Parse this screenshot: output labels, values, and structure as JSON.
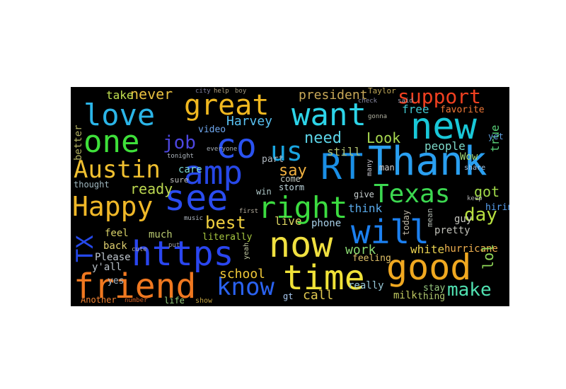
{
  "wordcloud": {
    "background": "#000000",
    "words": [
      {
        "text": "love",
        "color": "#2bb5e8"
      },
      {
        "text": "great",
        "color": "#f0b820"
      },
      {
        "text": "want",
        "color": "#2dd4e8"
      },
      {
        "text": "new",
        "color": "#19c8d8"
      },
      {
        "text": "one",
        "color": "#3ee03a"
      },
      {
        "text": "co",
        "color": "#2a52f0"
      },
      {
        "text": "us",
        "color": "#1aa5e0"
      },
      {
        "text": "RT",
        "color": "#1a8fe6"
      },
      {
        "text": "Thank",
        "color": "#2a9ff0"
      },
      {
        "text": "Austin",
        "color": "#f0c030"
      },
      {
        "text": "amp",
        "color": "#2748e8"
      },
      {
        "text": "see",
        "color": "#2a4cf0"
      },
      {
        "text": "Happy",
        "color": "#f0b828"
      },
      {
        "text": "right",
        "color": "#3cdc40"
      },
      {
        "text": "Texas",
        "color": "#3cd850"
      },
      {
        "text": "will",
        "color": "#1c80f0"
      },
      {
        "text": "https",
        "color": "#2a46f0"
      },
      {
        "text": "now",
        "color": "#f0e040"
      },
      {
        "text": "good",
        "color": "#f0a820"
      },
      {
        "text": "time",
        "color": "#f0e238"
      },
      {
        "text": "friend",
        "color": "#f07820"
      },
      {
        "text": "know",
        "color": "#2a62f0"
      },
      {
        "text": "TX",
        "color": "#2548ea"
      },
      {
        "text": "support",
        "color": "#f04020"
      },
      {
        "text": "president",
        "color": "#c8a858"
      },
      {
        "text": "job",
        "color": "#4d46e0"
      },
      {
        "text": "need",
        "color": "#5cd4e8"
      },
      {
        "text": "Look",
        "color": "#a8d850"
      },
      {
        "text": "say",
        "color": "#f0b040"
      },
      {
        "text": "ready",
        "color": "#bcd850"
      },
      {
        "text": "best",
        "color": "#f0d040"
      },
      {
        "text": "make",
        "color": "#50e0b0"
      },
      {
        "text": "day",
        "color": "#b8e040"
      },
      {
        "text": "got",
        "color": "#a0d848"
      },
      {
        "text": "never",
        "color": "#e8c040"
      },
      {
        "text": "take",
        "color": "#c0e050"
      },
      {
        "text": "Harvey",
        "color": "#58c0f0"
      },
      {
        "text": "free",
        "color": "#40c8d0"
      },
      {
        "text": "favorite",
        "color": "#f07838"
      },
      {
        "text": "true",
        "color": "#58d078"
      },
      {
        "text": "care",
        "color": "#7cd8d0"
      },
      {
        "text": "video",
        "color": "#70a8f0"
      },
      {
        "text": "people",
        "color": "#7cd8c8"
      },
      {
        "text": "still",
        "color": "#b0c070"
      },
      {
        "text": "Wow",
        "color": "#a0d878"
      },
      {
        "text": "think",
        "color": "#58a8e8"
      },
      {
        "text": "hiring",
        "color": "#58a0f0"
      },
      {
        "text": "live",
        "color": "#d8d060"
      },
      {
        "text": "phone",
        "color": "#a8d0e8"
      },
      {
        "text": "school",
        "color": "#f0c838"
      },
      {
        "text": "work",
        "color": "#88d870"
      },
      {
        "text": "white",
        "color": "#e8d050"
      },
      {
        "text": "hurricane",
        "color": "#f0b050"
      },
      {
        "text": "lol",
        "color": "#90d858"
      },
      {
        "text": "call",
        "color": "#e0c850"
      },
      {
        "text": "milk",
        "color": "#c0c860"
      },
      {
        "text": "thing",
        "color": "#b0c870"
      },
      {
        "text": "stay",
        "color": "#98c880"
      },
      {
        "text": "really",
        "color": "#98c8d8"
      },
      {
        "text": "feeling",
        "color": "#e0c068"
      },
      {
        "text": "better",
        "color": "#b0b060"
      },
      {
        "text": "thought",
        "color": "#a0b8c0"
      },
      {
        "text": "feel",
        "color": "#d8d068"
      },
      {
        "text": "much",
        "color": "#b8c870"
      },
      {
        "text": "back",
        "color": "#e0d070"
      },
      {
        "text": "Please",
        "color": "#c0c8d0"
      },
      {
        "text": "y'all",
        "color": "#b8c0c8"
      },
      {
        "text": "yes",
        "color": "#a8b8c8"
      },
      {
        "text": "Another",
        "color": "#f08030"
      },
      {
        "text": "number",
        "color": "#d06028"
      },
      {
        "text": "life",
        "color": "#98d080"
      },
      {
        "text": "show",
        "color": "#c0a040"
      },
      {
        "text": "gt",
        "color": "#a8c8f0"
      },
      {
        "text": "literally",
        "color": "#a8c840"
      },
      {
        "text": "yeah",
        "color": "#c0c8a0"
      },
      {
        "text": "part",
        "color": "#b0b8c0"
      },
      {
        "text": "come",
        "color": "#c0c8c0"
      },
      {
        "text": "storm",
        "color": "#c0d8e0"
      },
      {
        "text": "win",
        "color": "#b0c8c8"
      },
      {
        "text": "give",
        "color": "#c8d0d0"
      },
      {
        "text": "man",
        "color": "#d0d0d0"
      },
      {
        "text": "many",
        "color": "#c8c8d0"
      },
      {
        "text": "today",
        "color": "#c0b8a8"
      },
      {
        "text": "mean",
        "color": "#b0b8b0"
      },
      {
        "text": "pretty",
        "color": "#c0c0b8"
      },
      {
        "text": "guy",
        "color": "#c8c8c0"
      },
      {
        "text": "yet",
        "color": "#60a0e0"
      },
      {
        "text": "share",
        "color": "#a0c0e0"
      },
      {
        "text": "sure",
        "color": "#c0c0c0"
      },
      {
        "text": "tonight",
        "color": "#b0b8c0"
      },
      {
        "text": "everyone",
        "color": "#a8b0b8"
      },
      {
        "text": "help",
        "color": "#b0a080"
      },
      {
        "text": "boy",
        "color": "#a09880"
      },
      {
        "text": "city",
        "color": "#8080a0"
      },
      {
        "text": "Taylor",
        "color": "#c0a858"
      },
      {
        "text": "gonna",
        "color": "#b0b0a0"
      },
      {
        "text": "music",
        "color": "#b0b8c0"
      },
      {
        "text": "first",
        "color": "#b8b0a0"
      },
      {
        "text": "put",
        "color": "#a0a0a0"
      },
      {
        "text": "keep",
        "color": "#b0b0b0"
      },
      {
        "text": "said",
        "color": "#a0a0b0"
      },
      {
        "text": "check",
        "color": "#8888a0"
      },
      {
        "text": "cute",
        "color": "#b0a8a0"
      }
    ]
  }
}
